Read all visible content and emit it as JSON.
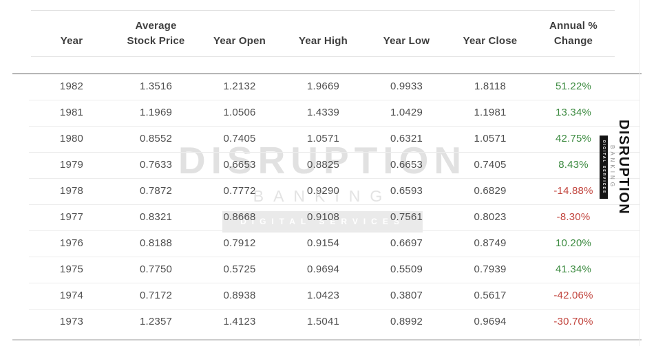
{
  "chart_data": {
    "type": "table",
    "title": "Annual stock price history table",
    "columns": [
      "Year",
      "Average Stock Price",
      "Year Open",
      "Year High",
      "Year Low",
      "Year Close",
      "Annual % Change"
    ],
    "rows": [
      [
        1982,
        1.3516,
        1.2132,
        1.9669,
        0.9933,
        1.8118,
        "51.22%"
      ],
      [
        1981,
        1.1969,
        1.0506,
        1.4339,
        1.0429,
        1.1981,
        "13.34%"
      ],
      [
        1980,
        0.8552,
        0.7405,
        1.0571,
        0.6321,
        1.0571,
        "42.75%"
      ],
      [
        1979,
        0.7633,
        0.6653,
        0.8825,
        0.6653,
        0.7405,
        "8.43%"
      ],
      [
        1978,
        0.7872,
        0.7772,
        0.929,
        0.6593,
        0.6829,
        "-14.88%"
      ],
      [
        1977,
        0.8321,
        0.8668,
        0.9108,
        0.7561,
        0.8023,
        "-8.30%"
      ],
      [
        1976,
        0.8188,
        0.7912,
        0.9154,
        0.6697,
        0.8749,
        "10.20%"
      ],
      [
        1975,
        0.775,
        0.5725,
        0.9694,
        0.5509,
        0.7939,
        "41.34%"
      ],
      [
        1974,
        0.7172,
        0.8938,
        1.0423,
        0.3807,
        0.5617,
        "-42.06%"
      ],
      [
        1973,
        1.2357,
        1.4123,
        1.5041,
        0.8992,
        0.9694,
        "-30.70%"
      ]
    ]
  },
  "table": {
    "headers": [
      "Year",
      "Average\nStock Price",
      "Year Open",
      "Year High",
      "Year Low",
      "Year Close",
      "Annual %\nChange"
    ],
    "header_keys": [
      "year",
      "average-stock-price",
      "year-open",
      "year-high",
      "year-low",
      "year-close",
      "annual-percent-change"
    ],
    "rows": [
      {
        "cells": [
          "1982",
          "1.3516",
          "1.2132",
          "1.9669",
          "0.9933",
          "1.8118",
          "51.22%"
        ],
        "trend": "positive"
      },
      {
        "cells": [
          "1981",
          "1.1969",
          "1.0506",
          "1.4339",
          "1.0429",
          "1.1981",
          "13.34%"
        ],
        "trend": "positive"
      },
      {
        "cells": [
          "1980",
          "0.8552",
          "0.7405",
          "1.0571",
          "0.6321",
          "1.0571",
          "42.75%"
        ],
        "trend": "positive"
      },
      {
        "cells": [
          "1979",
          "0.7633",
          "0.6653",
          "0.8825",
          "0.6653",
          "0.7405",
          "8.43%"
        ],
        "trend": "positive"
      },
      {
        "cells": [
          "1978",
          "0.7872",
          "0.7772",
          "0.9290",
          "0.6593",
          "0.6829",
          "-14.88%"
        ],
        "trend": "negative"
      },
      {
        "cells": [
          "1977",
          "0.8321",
          "0.8668",
          "0.9108",
          "0.7561",
          "0.8023",
          "-8.30%"
        ],
        "trend": "negative"
      },
      {
        "cells": [
          "1976",
          "0.8188",
          "0.7912",
          "0.9154",
          "0.6697",
          "0.8749",
          "10.20%"
        ],
        "trend": "positive"
      },
      {
        "cells": [
          "1975",
          "0.7750",
          "0.5725",
          "0.9694",
          "0.5509",
          "0.7939",
          "41.34%"
        ],
        "trend": "positive"
      },
      {
        "cells": [
          "1974",
          "0.7172",
          "0.8938",
          "1.0423",
          "0.3807",
          "0.5617",
          "-42.06%"
        ],
        "trend": "negative"
      },
      {
        "cells": [
          "1973",
          "1.2357",
          "1.4123",
          "1.5041",
          "0.8992",
          "0.9694",
          "-30.70%"
        ],
        "trend": "negative"
      }
    ]
  },
  "watermark": {
    "title": "DISRUPTION",
    "subtitle": "BANKING",
    "badge": "DIGITAL SERVICES"
  },
  "side_logo": {
    "title": "DISRUPTION",
    "subtitle": "BANKING",
    "badge": "DIGITAL SERVICES"
  },
  "colors": {
    "positive": "#3d8b41",
    "negative": "#c2453e",
    "text": "#4f4f4f",
    "header_text": "#3e3e3e",
    "watermark": "#e1e1e1"
  }
}
